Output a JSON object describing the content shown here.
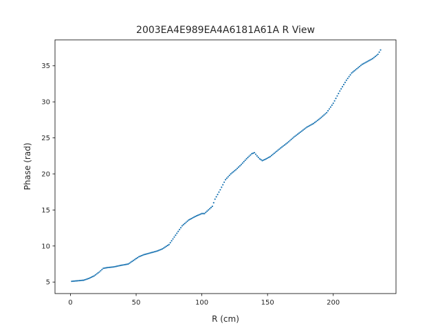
{
  "chart_data": {
    "type": "scatter",
    "title": "2003EA4E989EA4A6181A61A R View",
    "xlabel": "R (cm)",
    "ylabel": "Phase (rad)",
    "xlim": [
      -11.75,
      247.75
    ],
    "ylim": [
      3.4,
      38.6
    ],
    "xticks": [
      0,
      50,
      100,
      150,
      200
    ],
    "yticks": [
      5,
      10,
      15,
      20,
      25,
      30,
      35
    ],
    "xtick_labels": [
      "0",
      "50",
      "100",
      "150",
      "200"
    ],
    "ytick_labels": [
      "5",
      "10",
      "15",
      "20",
      "25",
      "30",
      "35"
    ],
    "grid": false,
    "marker_color": "#1f77b4",
    "x_range": [
      1,
      236
    ],
    "x_step": 1,
    "series": [
      {
        "profile": [
          [
            1,
            5.1
          ],
          [
            10,
            5.25
          ],
          [
            14,
            5.5
          ],
          [
            18,
            5.85
          ],
          [
            22,
            6.4
          ],
          [
            25,
            6.9
          ],
          [
            28,
            7.0
          ],
          [
            33,
            7.1
          ],
          [
            38,
            7.3
          ],
          [
            44,
            7.5
          ],
          [
            48,
            8.0
          ],
          [
            52,
            8.5
          ],
          [
            56,
            8.8
          ],
          [
            60,
            9.0
          ],
          [
            66,
            9.3
          ],
          [
            70,
            9.6
          ],
          [
            75,
            10.2
          ],
          [
            80,
            11.5
          ],
          [
            85,
            12.8
          ],
          [
            90,
            13.6
          ],
          [
            95,
            14.1
          ],
          [
            100,
            14.5
          ],
          [
            102,
            14.5
          ],
          [
            105,
            15.0
          ],
          [
            108,
            15.5
          ],
          [
            110,
            16.5
          ],
          [
            114,
            17.8
          ],
          [
            118,
            19.2
          ],
          [
            122,
            20.0
          ],
          [
            126,
            20.6
          ],
          [
            130,
            21.3
          ],
          [
            134,
            22.1
          ],
          [
            138,
            22.8
          ],
          [
            140,
            22.95
          ],
          [
            142,
            22.5
          ],
          [
            144,
            22.1
          ],
          [
            146,
            21.85
          ],
          [
            148,
            22.0
          ],
          [
            152,
            22.4
          ],
          [
            156,
            23.0
          ],
          [
            160,
            23.6
          ],
          [
            165,
            24.3
          ],
          [
            170,
            25.1
          ],
          [
            175,
            25.8
          ],
          [
            180,
            26.5
          ],
          [
            185,
            27.0
          ],
          [
            190,
            27.7
          ],
          [
            195,
            28.5
          ],
          [
            200,
            29.8
          ],
          [
            205,
            31.5
          ],
          [
            210,
            33.0
          ],
          [
            214,
            34.0
          ],
          [
            218,
            34.6
          ],
          [
            222,
            35.2
          ],
          [
            226,
            35.6
          ],
          [
            230,
            36.0
          ],
          [
            234,
            36.6
          ],
          [
            236,
            37.2
          ]
        ]
      }
    ]
  }
}
